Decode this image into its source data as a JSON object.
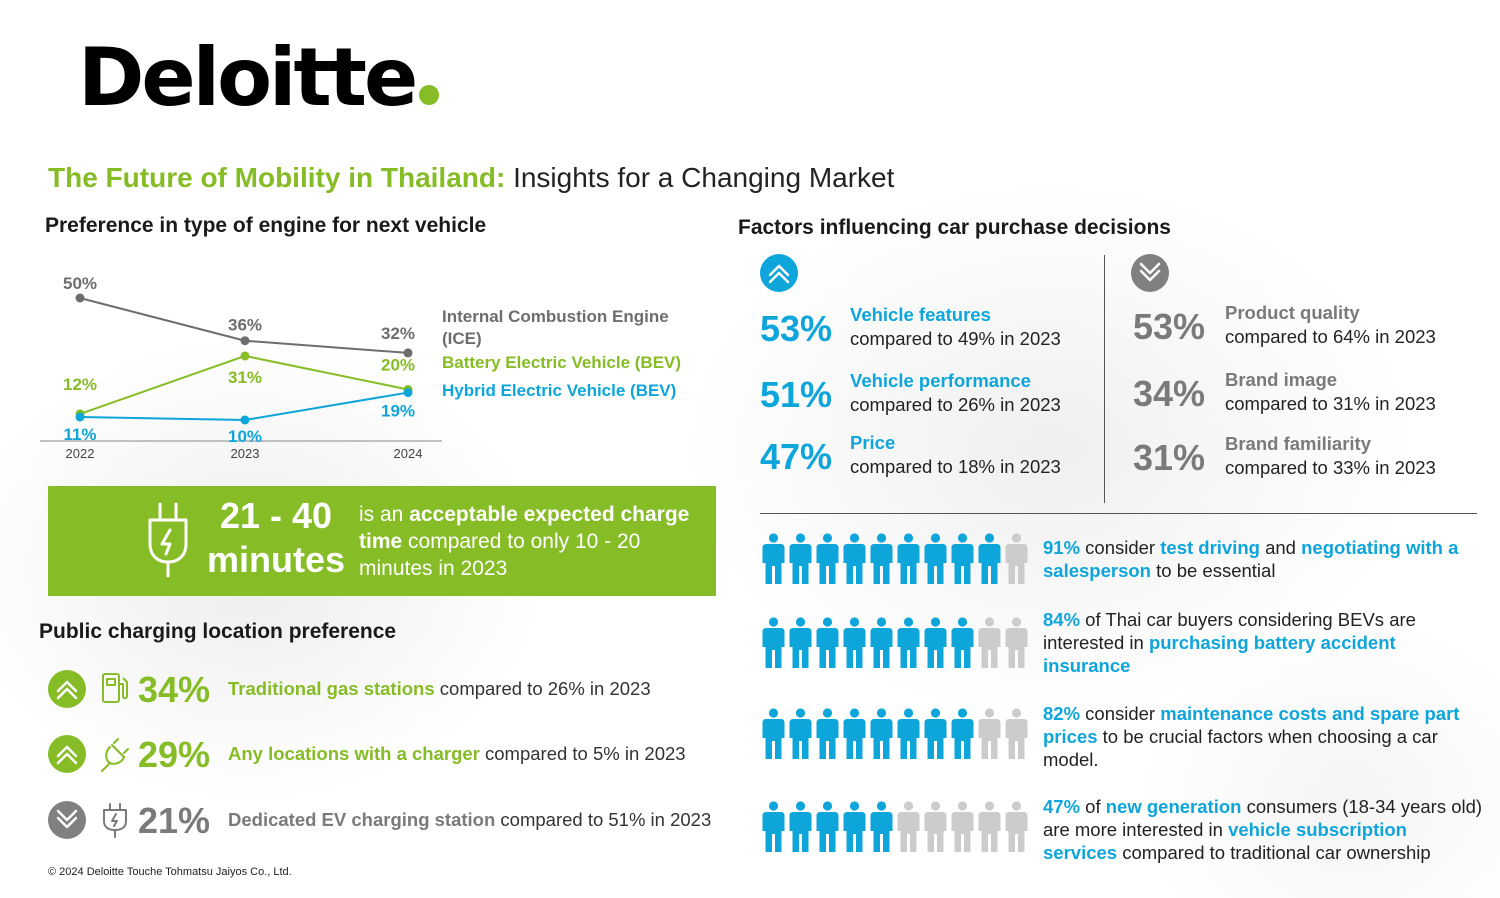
{
  "logo": {
    "text": "Deloitte"
  },
  "title": {
    "highlight": "The Future of Mobility in Thailand:",
    "rest": " Insights for a Changing Market"
  },
  "engine_section": {
    "heading": "Preference in type of engine for next vehicle"
  },
  "chart_data": {
    "type": "line",
    "title": "Preference in type of engine for next vehicle",
    "x": [
      "2022",
      "2023",
      "2024"
    ],
    "ylim": [
      0,
      60
    ],
    "grid": false,
    "series": [
      {
        "name": "Internal Combustion Engine (ICE)",
        "color": "#6d6d6d",
        "values": [
          50,
          36,
          32
        ],
        "labels": [
          "50%",
          "36%",
          "32%"
        ]
      },
      {
        "name": "Battery Electric Vehicle (BEV)",
        "color": "#86bc25",
        "values": [
          12,
          31,
          20
        ],
        "labels": [
          "12%",
          "31%",
          "20%"
        ]
      },
      {
        "name": "Hybrid Electric Vehicle (BEV)",
        "color": "#0ea5db",
        "values": [
          11,
          10,
          19
        ],
        "labels": [
          "11%",
          "10%",
          "19%"
        ]
      }
    ]
  },
  "legend": {
    "ice_line1": "Internal Combustion Engine",
    "ice_line2": "(ICE)",
    "bev": "Battery Electric Vehicle (BEV)",
    "hev": "Hybrid Electric Vehicle (BEV)"
  },
  "banner": {
    "big_line1": "21 - 40",
    "big_line2": "minutes",
    "t1": "is an ",
    "t2": "acceptable expected charge time",
    "t3": " compared to only 10 - 20 minutes in 2023",
    "icon": "plug-icon"
  },
  "charging": {
    "heading": "Public charging location preference",
    "rows": [
      {
        "trend": "up",
        "icon": "gas-pump-icon",
        "pct": "34%",
        "label": "Traditional gas stations",
        "compare": " compared to 26% in 2023",
        "color": "#86bc25"
      },
      {
        "trend": "up",
        "icon": "plug-charger-icon",
        "pct": "29%",
        "label": "Any locations with a charger",
        "compare": " compared to 5% in 2023",
        "color": "#86bc25"
      },
      {
        "trend": "down",
        "icon": "ev-plug-icon",
        "pct": "21%",
        "label": "Dedicated EV charging station",
        "compare": " compared to 51% in 2023",
        "color": "#7a7a7a"
      }
    ]
  },
  "factors": {
    "heading": "Factors influencing car purchase decisions",
    "up": [
      {
        "pct": "53%",
        "name": "Vehicle features",
        "compare": "compared to 49% in 2023"
      },
      {
        "pct": "51%",
        "name": "Vehicle performance",
        "compare": "compared to 26% in 2023"
      },
      {
        "pct": "47%",
        "name": "Price",
        "compare": "compared to 18% in 2023"
      }
    ],
    "down": [
      {
        "pct": "53%",
        "name": "Product quality",
        "compare": "compared to 64% in 2023"
      },
      {
        "pct": "34%",
        "name": "Brand image",
        "compare": "compared to 31% in 2023"
      },
      {
        "pct": "31%",
        "name": "Brand familiarity",
        "compare": "compared to 33% in 2023"
      }
    ]
  },
  "people_stats": [
    {
      "filled": 9,
      "parts": [
        [
          "91%",
          true
        ],
        [
          " consider ",
          false
        ],
        [
          "test driving",
          true
        ],
        [
          " and ",
          false
        ],
        [
          "negotiating with a salesperson",
          true
        ],
        [
          " to be essential",
          false
        ]
      ]
    },
    {
      "filled": 8,
      "parts": [
        [
          "84%",
          true
        ],
        [
          " of Thai car buyers considering BEVs are interested in ",
          false
        ],
        [
          "purchasing battery accident insurance",
          true
        ]
      ]
    },
    {
      "filled": 8,
      "parts": [
        [
          "82%",
          true
        ],
        [
          " consider ",
          false
        ],
        [
          "maintenance costs and spare part prices",
          true
        ],
        [
          " to be crucial factors when choosing a car model.",
          false
        ]
      ]
    },
    {
      "filled": 5,
      "parts": [
        [
          "47%",
          true
        ],
        [
          " of ",
          false
        ],
        [
          "new generation",
          true
        ],
        [
          " consumers (18-34 years old) are more interested in ",
          false
        ],
        [
          "vehicle subscription services",
          true
        ],
        [
          " compared to traditional car ownership",
          false
        ]
      ]
    }
  ],
  "footer": "© 2024 Deloitte Touche Tohmatsu Jaiyos Co., Ltd.",
  "colors": {
    "green": "#86bc25",
    "blue": "#0ea5db",
    "grey": "#808080",
    "person_off": "#cccccc"
  }
}
